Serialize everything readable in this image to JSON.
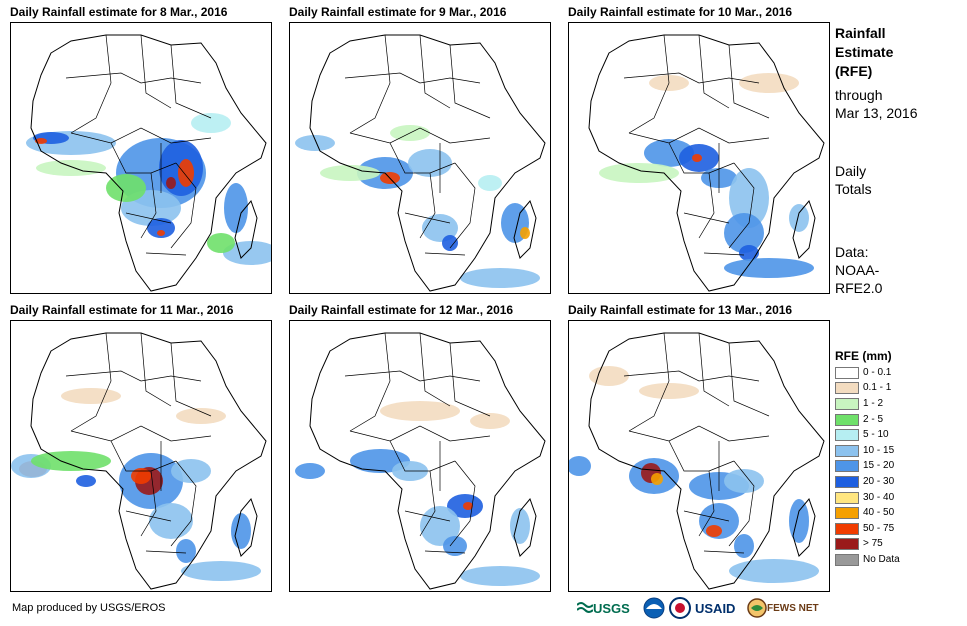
{
  "panels": [
    {
      "title": "Daily Rainfall estimate for 8 Mar., 2016"
    },
    {
      "title": "Daily Rainfall estimate for 9 Mar., 2016"
    },
    {
      "title": "Daily Rainfall estimate for 10 Mar., 2016"
    },
    {
      "title": "Daily Rainfall estimate for 11 Mar., 2016"
    },
    {
      "title": "Daily Rainfall estimate for 12 Mar., 2016"
    },
    {
      "title": "Daily Rainfall estimate for 13 Mar., 2016"
    }
  ],
  "side": {
    "title": [
      "Rainfall",
      "Estimate",
      "(RFE)"
    ],
    "through": [
      "through",
      "Mar 13, 2016"
    ],
    "totals": [
      "Daily",
      "Totals"
    ],
    "data": [
      "Data:",
      "NOAA-",
      "RFE2.0"
    ]
  },
  "legend": {
    "title": "RFE (mm)",
    "items": [
      {
        "label": "0 - 0.1",
        "color": "#ffffff"
      },
      {
        "label": "0.1 - 1",
        "color": "#f3dcc0"
      },
      {
        "label": "1 - 2",
        "color": "#c8f5c0"
      },
      {
        "label": "2 - 5",
        "color": "#6fe06a"
      },
      {
        "label": "5 - 10",
        "color": "#b6eef2"
      },
      {
        "label": "10 - 15",
        "color": "#8cc2ee"
      },
      {
        "label": "15 - 20",
        "color": "#4e95e8"
      },
      {
        "label": "20 - 30",
        "color": "#1e5fe0"
      },
      {
        "label": "30 - 40",
        "color": "#ffe680"
      },
      {
        "label": "40 - 50",
        "color": "#f5a000"
      },
      {
        "label": "50 - 75",
        "color": "#f03c00"
      },
      {
        "label": "> 75",
        "color": "#9a1a1a"
      },
      {
        "label": "No Data",
        "color": "#999999"
      }
    ]
  },
  "footer": {
    "credit": "Map produced by USGS/EROS",
    "logos": {
      "usgs": "USGS",
      "usaid": "USAID",
      "fews": "FEWS NET"
    }
  }
}
